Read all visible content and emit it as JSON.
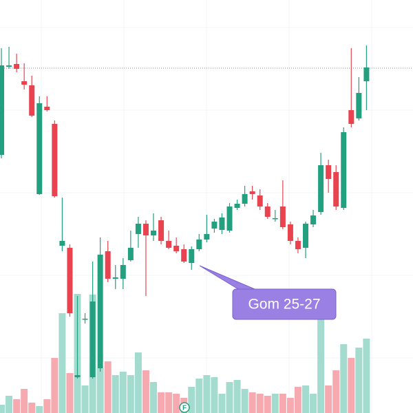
{
  "chart_data": {
    "type": "candlestick",
    "up_color": "#22a07f",
    "down_color": "#e8434f",
    "volume_up_color": "#a3dbcf",
    "volume_down_color": "#f6aab0",
    "ylim": [
      0,
      600
    ],
    "vlim": [
      0,
      600
    ],
    "open": [
      375,
      503,
      507,
      482,
      476,
      318,
      445,
      420,
      243,
      240,
      52,
      137,
      52,
      65,
      235,
      195,
      195,
      222,
      260,
      275,
      258,
      280,
      250,
      243,
      238,
      218,
      238,
      252,
      268,
      266,
      265,
      298,
      304,
      322,
      316,
      300,
      283,
      300,
      274,
      250,
      240,
      274,
      292,
      360,
      350,
      298,
      440,
      428,
      482
    ],
    "close": [
      505,
      505,
      500,
      477,
      432,
      450,
      440,
      315,
      250,
      145,
      55,
      137,
      162,
      230,
      195,
      197,
      215,
      240,
      275,
      258,
      265,
      250,
      240,
      235,
      220,
      238,
      252,
      260,
      278,
      284,
      300,
      304,
      318,
      318,
      300,
      285,
      283,
      270,
      250,
      238,
      275,
      287,
      360,
      340,
      300,
      408,
      420,
      465,
      502
    ],
    "high": [
      530,
      532,
      522,
      508,
      490,
      460,
      460,
      425,
      313,
      245,
      170,
      145,
      220,
      255,
      250,
      215,
      225,
      265,
      285,
      280,
      290,
      285,
      265,
      255,
      245,
      242,
      260,
      288,
      282,
      290,
      305,
      310,
      330,
      330,
      325,
      305,
      295,
      338,
      278,
      255,
      278,
      295,
      378,
      368,
      360,
      415,
      530,
      488,
      534
    ],
    "low": [
      370,
      500,
      495,
      470,
      430,
      317,
      438,
      313,
      235,
      140,
      50,
      130,
      50,
      60,
      190,
      180,
      180,
      220,
      240,
      170,
      250,
      245,
      238,
      232,
      218,
      208,
      235,
      248,
      262,
      260,
      262,
      295,
      300,
      310,
      295,
      282,
      278,
      267,
      245,
      232,
      225,
      270,
      288,
      320,
      295,
      295,
      415,
      425,
      440
    ],
    "volume": [
      12,
      25,
      20,
      35,
      15,
      10,
      20,
      80,
      145,
      58,
      173,
      40,
      172,
      65,
      75,
      55,
      60,
      55,
      88,
      62,
      45,
      30,
      30,
      28,
      22,
      38,
      50,
      55,
      52,
      28,
      45,
      48,
      35,
      30,
      28,
      25,
      28,
      28,
      22,
      38,
      40,
      28,
      138,
      40,
      62,
      100,
      80,
      95,
      108
    ],
    "price_line": 501,
    "annotation": "Gom 25-27",
    "marker_label": "F"
  }
}
